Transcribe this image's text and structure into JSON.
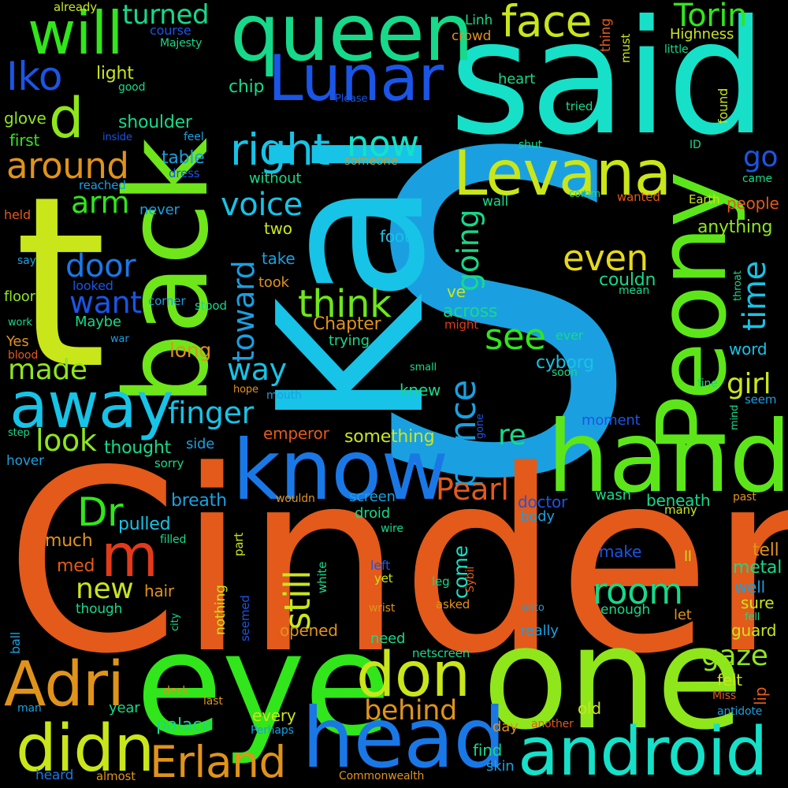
{
  "background": "#000000",
  "words": [
    {
      "text": "S",
      "color": "#1aa0e0"
    },
    {
      "text": "Cinder",
      "color": "#e35a1a"
    },
    {
      "text": "Kai",
      "color": "#17c3e6"
    },
    {
      "text": "said",
      "color": "#16e0c8"
    },
    {
      "text": "back",
      "color": "#6ee61a"
    },
    {
      "text": "t",
      "color": "#c9e61a"
    },
    {
      "text": "eye",
      "color": "#31e61a"
    },
    {
      "text": "one",
      "color": "#8fe61a"
    },
    {
      "text": "hand",
      "color": "#5ce61a"
    },
    {
      "text": "Peony",
      "color": "#5ce61a"
    },
    {
      "text": "queen",
      "color": "#16d98a"
    },
    {
      "text": "know",
      "color": "#1a78e6"
    },
    {
      "text": "head",
      "color": "#1a78e6"
    },
    {
      "text": "android",
      "color": "#16e0c8"
    },
    {
      "text": "Lunar",
      "color": "#1a55e6"
    },
    {
      "text": "Levana",
      "color": "#c9e61a"
    },
    {
      "text": "away",
      "color": "#17c3e6"
    },
    {
      "text": "didn",
      "color": "#c9e61a"
    },
    {
      "text": "don",
      "color": "#c9e61a"
    },
    {
      "text": "Adri",
      "color": "#e0931a"
    },
    {
      "text": "will",
      "color": "#31e61a"
    },
    {
      "text": "Erland",
      "color": "#e0931a"
    },
    {
      "text": "right",
      "color": "#17c3e6"
    },
    {
      "text": "face",
      "color": "#c9e61a"
    },
    {
      "text": "room",
      "color": "#16d98a"
    },
    {
      "text": "even",
      "color": "#e6d81a"
    },
    {
      "text": "Torin",
      "color": "#31e61a"
    },
    {
      "text": "prince",
      "color": "#1aa0e0"
    },
    {
      "text": "d",
      "color": "#8fe61a"
    },
    {
      "text": "around",
      "color": "#e0931a"
    },
    {
      "text": "now",
      "color": "#16e0c8"
    },
    {
      "text": "m",
      "color": "#e33a1a"
    },
    {
      "text": "see",
      "color": "#31e61a"
    },
    {
      "text": "think",
      "color": "#6ee61a"
    },
    {
      "text": "still",
      "color": "#c9e61a"
    },
    {
      "text": "voice",
      "color": "#17c3e6"
    },
    {
      "text": "Iko",
      "color": "#1a55e6"
    },
    {
      "text": "door",
      "color": "#1a78e6"
    },
    {
      "text": "Dr",
      "color": "#31e61a"
    },
    {
      "text": "Pearl",
      "color": "#e35a1a"
    },
    {
      "text": "going",
      "color": "#16d98a"
    },
    {
      "text": "time",
      "color": "#17c3e6"
    },
    {
      "text": "toward",
      "color": "#1aa0e0"
    },
    {
      "text": "way",
      "color": "#17c3e6"
    },
    {
      "text": "arm",
      "color": "#31e61a"
    },
    {
      "text": "want",
      "color": "#1a55e6"
    },
    {
      "text": "made",
      "color": "#8fe61a"
    },
    {
      "text": "look",
      "color": "#8fe61a"
    },
    {
      "text": "finger",
      "color": "#17c3e6"
    },
    {
      "text": "new",
      "color": "#c9e61a"
    },
    {
      "text": "gaze",
      "color": "#8fe61a"
    },
    {
      "text": "girl",
      "color": "#c9e61a"
    },
    {
      "text": "behind",
      "color": "#e0931a"
    },
    {
      "text": "re",
      "color": "#16d98a"
    },
    {
      "text": "go",
      "color": "#1a55e6"
    },
    {
      "text": "turned",
      "color": "#16d98a"
    },
    {
      "text": "come",
      "color": "#16e0c8"
    },
    {
      "text": "long",
      "color": "#e0931a"
    },
    {
      "text": "Chapter",
      "color": "#e0931a"
    },
    {
      "text": "cyborg",
      "color": "#17c3e6"
    },
    {
      "text": "shoulder",
      "color": "#16d98a"
    },
    {
      "text": "table",
      "color": "#1aa0e0"
    },
    {
      "text": "light",
      "color": "#c9e61a"
    },
    {
      "text": "chip",
      "color": "#16d98a"
    },
    {
      "text": "anything",
      "color": "#8fe61a"
    },
    {
      "text": "people",
      "color": "#e35a1a"
    },
    {
      "text": "across",
      "color": "#16d98a"
    },
    {
      "text": "couldn",
      "color": "#16d98a"
    },
    {
      "text": "thought",
      "color": "#16d98a"
    },
    {
      "text": "something",
      "color": "#c9e61a"
    },
    {
      "text": "emperor",
      "color": "#e35a1a"
    },
    {
      "text": "opened",
      "color": "#e0931a"
    },
    {
      "text": "pulled",
      "color": "#17c3e6"
    },
    {
      "text": "much",
      "color": "#e0931a"
    },
    {
      "text": "med",
      "color": "#e35a1a"
    },
    {
      "text": "hair",
      "color": "#e0931a"
    },
    {
      "text": "breath",
      "color": "#1aa0e0"
    },
    {
      "text": "palace",
      "color": "#16d98a"
    },
    {
      "text": "every",
      "color": "#c9e61a"
    },
    {
      "text": "Highness",
      "color": "#c9e61a"
    },
    {
      "text": "glove",
      "color": "#8fe61a"
    },
    {
      "text": "first",
      "color": "#31e61a"
    },
    {
      "text": "word",
      "color": "#17c3e6"
    },
    {
      "text": "metal",
      "color": "#16d98a"
    },
    {
      "text": "tell",
      "color": "#e0931a"
    },
    {
      "text": "sure",
      "color": "#c9e61a"
    },
    {
      "text": "well",
      "color": "#1aa0e0"
    },
    {
      "text": "guard",
      "color": "#c9e61a"
    },
    {
      "text": "felt",
      "color": "#c9e61a"
    },
    {
      "text": "lip",
      "color": "#e35a1a"
    },
    {
      "text": "old",
      "color": "#c9e61a"
    },
    {
      "text": "find",
      "color": "#16d98a"
    },
    {
      "text": "skin",
      "color": "#1aa0e0"
    },
    {
      "text": "day",
      "color": "#e0931a"
    },
    {
      "text": "two",
      "color": "#c9e61a"
    },
    {
      "text": "take",
      "color": "#1aa0e0"
    },
    {
      "text": "took",
      "color": "#e0931a"
    },
    {
      "text": "foot",
      "color": "#17c3e6"
    },
    {
      "text": "knew",
      "color": "#16d98a"
    },
    {
      "text": "ve",
      "color": "#c9e61a"
    },
    {
      "text": "trying",
      "color": "#16d98a"
    },
    {
      "text": "floor",
      "color": "#8fe61a"
    },
    {
      "text": "Maybe",
      "color": "#16d98a"
    },
    {
      "text": "Yes",
      "color": "#e0931a"
    },
    {
      "text": "heart",
      "color": "#16d98a"
    },
    {
      "text": "doctor",
      "color": "#1a55e6"
    },
    {
      "text": "body",
      "color": "#1aa0e0"
    },
    {
      "text": "wasn",
      "color": "#16d98a"
    },
    {
      "text": "beneath",
      "color": "#16d98a"
    },
    {
      "text": "moment",
      "color": "#1a55e6"
    },
    {
      "text": "make",
      "color": "#1a55e6"
    },
    {
      "text": "enough",
      "color": "#16d98a"
    },
    {
      "text": "let",
      "color": "#e0931a"
    },
    {
      "text": "need",
      "color": "#16d98a"
    },
    {
      "text": "really",
      "color": "#1aa0e0"
    },
    {
      "text": "screen",
      "color": "#1aa0e0"
    },
    {
      "text": "droid",
      "color": "#16d98a"
    },
    {
      "text": "netscreen",
      "color": "#16d98a"
    },
    {
      "text": "side",
      "color": "#1aa0e0"
    },
    {
      "text": "never",
      "color": "#1aa0e0"
    },
    {
      "text": "without",
      "color": "#16d98a"
    },
    {
      "text": "someone",
      "color": "#e0931a"
    },
    {
      "text": "looked",
      "color": "#1a55e6"
    },
    {
      "text": "corner",
      "color": "#1aa0e0"
    },
    {
      "text": "stood",
      "color": "#16d98a"
    },
    {
      "text": "reached",
      "color": "#1aa0e0"
    },
    {
      "text": "dress",
      "color": "#1a55e6"
    },
    {
      "text": "hover",
      "color": "#1aa0e0"
    },
    {
      "text": "sorry",
      "color": "#16d98a"
    },
    {
      "text": "year",
      "color": "#16d98a"
    },
    {
      "text": "course",
      "color": "#1a55e6"
    },
    {
      "text": "crowd",
      "color": "#e0931a"
    },
    {
      "text": "Linh",
      "color": "#16d98a"
    },
    {
      "text": "already",
      "color": "#c9e61a"
    },
    {
      "text": "Majesty",
      "color": "#16d98a"
    },
    {
      "text": "good",
      "color": "#16d98a"
    },
    {
      "text": "Please",
      "color": "#1a55e6"
    },
    {
      "text": "feel",
      "color": "#1aa0e0"
    },
    {
      "text": "inside",
      "color": "#1a55e6"
    },
    {
      "text": "tried",
      "color": "#16d98a"
    },
    {
      "text": "shut",
      "color": "#16d98a"
    },
    {
      "text": "ID",
      "color": "#16d98a"
    },
    {
      "text": "came",
      "color": "#16d98a"
    },
    {
      "text": "comm",
      "color": "#16d98a"
    },
    {
      "text": "wanted",
      "color": "#e35a1a"
    },
    {
      "text": "Earth",
      "color": "#c9e61a"
    },
    {
      "text": "wall",
      "color": "#16d98a"
    },
    {
      "text": "held",
      "color": "#e35a1a"
    },
    {
      "text": "say",
      "color": "#1aa0e0"
    },
    {
      "text": "work",
      "color": "#16d98a"
    },
    {
      "text": "war",
      "color": "#1aa0e0"
    },
    {
      "text": "blood",
      "color": "#e35a1a"
    },
    {
      "text": "might",
      "color": "#e33a1a"
    },
    {
      "text": "ever",
      "color": "#16d98a"
    },
    {
      "text": "soon",
      "color": "#16d98a"
    },
    {
      "text": "mean",
      "color": "#16d98a"
    },
    {
      "text": "small",
      "color": "#16d98a"
    },
    {
      "text": "fine",
      "color": "#16d98a"
    },
    {
      "text": "seem",
      "color": "#1aa0e0"
    },
    {
      "text": "hope",
      "color": "#e0931a"
    },
    {
      "text": "mouth",
      "color": "#1aa0e0"
    },
    {
      "text": "step",
      "color": "#16d98a"
    },
    {
      "text": "past",
      "color": "#e0931a"
    },
    {
      "text": "many",
      "color": "#c9e61a"
    },
    {
      "text": "wouldn",
      "color": "#e0931a"
    },
    {
      "text": "filled",
      "color": "#16d98a"
    },
    {
      "text": "wire",
      "color": "#16d98a"
    },
    {
      "text": "left",
      "color": "#1a55e6"
    },
    {
      "text": "yet",
      "color": "#c9e61a"
    },
    {
      "text": "leg",
      "color": "#16d98a"
    },
    {
      "text": "asked",
      "color": "#e0931a"
    },
    {
      "text": "ll",
      "color": "#c9e61a"
    },
    {
      "text": "onto",
      "color": "#1aa0e0"
    },
    {
      "text": "wrist",
      "color": "#e0931a"
    },
    {
      "text": "though",
      "color": "#16d98a"
    },
    {
      "text": "fell",
      "color": "#16d98a"
    },
    {
      "text": "Miss",
      "color": "#e35a1a"
    },
    {
      "text": "antidote",
      "color": "#1aa0e0"
    },
    {
      "text": "desk",
      "color": "#e0931a"
    },
    {
      "text": "last",
      "color": "#e0931a"
    },
    {
      "text": "man",
      "color": "#1aa0e0"
    },
    {
      "text": "Perhaps",
      "color": "#1aa0e0"
    },
    {
      "text": "another",
      "color": "#e35a1a"
    },
    {
      "text": "heard",
      "color": "#1a78e6"
    },
    {
      "text": "almost",
      "color": "#e0931a"
    },
    {
      "text": "Commonwealth",
      "color": "#e0931a"
    },
    {
      "text": "part",
      "color": "#c9e61a"
    },
    {
      "text": "nothing",
      "color": "#c9e61a"
    },
    {
      "text": "seemed",
      "color": "#1a55e6"
    },
    {
      "text": "white",
      "color": "#16d98a"
    },
    {
      "text": "Sybil",
      "color": "#e35a1a"
    },
    {
      "text": "city",
      "color": "#16d98a"
    },
    {
      "text": "ball",
      "color": "#1aa0e0"
    },
    {
      "text": "thing",
      "color": "#e35a1a"
    },
    {
      "text": "must",
      "color": "#c9e61a"
    },
    {
      "text": "little",
      "color": "#16d98a"
    },
    {
      "text": "found",
      "color": "#c9e61a"
    },
    {
      "text": "throat",
      "color": "#16d98a"
    },
    {
      "text": "mind",
      "color": "#16d98a"
    },
    {
      "text": "gone",
      "color": "#1a55e6"
    }
  ]
}
